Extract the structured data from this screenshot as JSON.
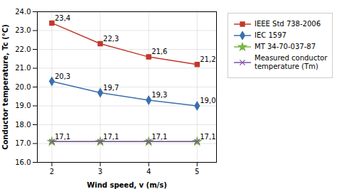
{
  "chart_data": {
    "type": "line",
    "x": [
      2,
      3,
      4,
      5
    ],
    "series": [
      {
        "name": "IEEE Std 738-2006",
        "color": "#c0392b",
        "marker": "square",
        "line_style": "solid",
        "values": [
          23.4,
          22.3,
          21.6,
          21.2
        ],
        "value_labels": [
          "23,4",
          "22,3",
          "21,6",
          "21,2"
        ]
      },
      {
        "name": "IEC 1597",
        "color": "#3a6fad",
        "marker": "diamond",
        "line_style": "solid",
        "values": [
          20.3,
          19.7,
          19.3,
          19.0
        ],
        "value_labels": [
          "20,3",
          "19,7",
          "19,3",
          "19,0"
        ]
      },
      {
        "name": "MT 34-70-037-87",
        "color": "#7ab648",
        "marker": "star",
        "line_style": "solid",
        "values": [
          17.1,
          17.1,
          17.1,
          17.1
        ],
        "value_labels": [
          "17,1",
          "17,1",
          "17,1",
          "17,1"
        ]
      },
      {
        "name": "Measured conductor\ntemperature (Tm)",
        "color": "#7b52a0",
        "marker": "times",
        "line_style": "solid",
        "values": [
          17.1,
          17.1,
          17.1,
          17.1
        ]
      }
    ],
    "xlabel": "Wind speed, v (m/s)",
    "ylabel": "Conductor temperature, Tc (°C)",
    "xlim": [
      1.7,
      5.4
    ],
    "xticks": [
      2,
      3,
      4,
      5
    ],
    "ylim": [
      16.0,
      24.0
    ],
    "yticks": [
      {
        "value": 16,
        "label": "16.0"
      },
      {
        "value": 17,
        "label": "17.0"
      },
      {
        "value": 18,
        "label": "18.0"
      },
      {
        "value": 19,
        "label": "19.0"
      },
      {
        "value": 20,
        "label": "20.0"
      },
      {
        "value": 21,
        "label": "21.0"
      },
      {
        "value": 22,
        "label": "22.0"
      },
      {
        "value": 23,
        "label": "23.0"
      },
      {
        "value": 24,
        "label": "24.0"
      }
    ],
    "grid": true,
    "legend": "right",
    "data_labels": true
  }
}
